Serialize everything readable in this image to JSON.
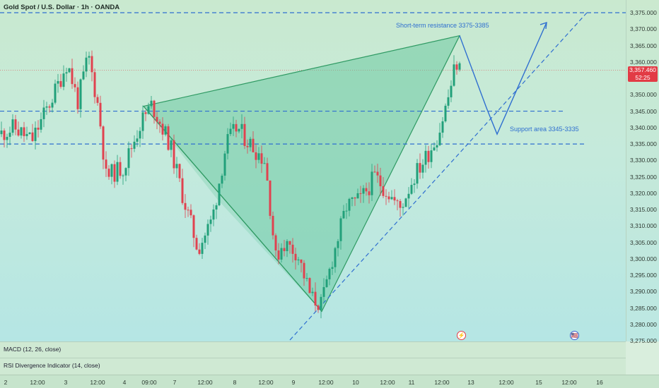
{
  "header": {
    "symbol": "Gold Spot / U.S. Dollar · 1h · OANDA"
  },
  "annotations": {
    "resistance": "Short-term resistance 3375-3385",
    "support": "Support area 3345-3335"
  },
  "price_axis": {
    "ticks": [
      "3,375.000",
      "3,370.000",
      "3,365.000",
      "3,360.000",
      "3,350.000",
      "3,345.000",
      "3,340.000",
      "3,335.000",
      "3,330.000",
      "3,325.000",
      "3,320.000",
      "3,315.000",
      "3,310.000",
      "3,305.000",
      "3,300.000",
      "3,295.000",
      "3,290.000",
      "3,285.000",
      "3,280.000",
      "3,275.000"
    ],
    "current_price": "3,357.460",
    "countdown": "52:25"
  },
  "indicators": {
    "macd": "MACD (12, 26, close)",
    "rsi": "RSI Divergence Indicator (14, close)"
  },
  "time_axis": {
    "labels": [
      "2",
      "12:00",
      "3",
      "12:00",
      "4",
      "09:00",
      "7",
      "12:00",
      "8",
      "12:00",
      "9",
      "12:00",
      "10",
      "12:00",
      "11",
      "12:00",
      "13",
      "12:00",
      "15",
      "12:00",
      "16"
    ]
  },
  "events": {
    "flash": "⚡",
    "flag": "🇺🇸"
  },
  "colors": {
    "up": "#22a07a",
    "down": "#e0424f",
    "projection": "#2f6fd0",
    "pattern_fill": "#5cc497",
    "pattern_line": "#2f9a63"
  },
  "chart_data": {
    "type": "candlestick",
    "ylim": [
      3275,
      3378
    ],
    "resistance_line": 3375,
    "support_lines": [
      3345,
      3335
    ],
    "current_price": 3357.46,
    "pattern_points": [
      3346.5,
      3284,
      3368
    ],
    "projection_path": [
      3368,
      3346,
      3338,
      3372
    ]
  }
}
